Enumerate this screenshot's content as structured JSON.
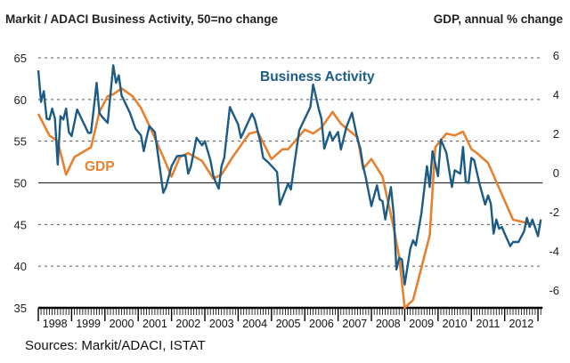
{
  "chart_data": {
    "type": "line",
    "title_left": "Markit / ADACI  Business Activity, 50=no change",
    "title_right": "GDP, annual % change",
    "source": "Sources: Markit/ADACI, ISTAT",
    "x_tick_labels": [
      "1998",
      "1999",
      "2000",
      "2001",
      "2002",
      "2003",
      "2004",
      "2005",
      "2006",
      "2007",
      "2008",
      "2009",
      "2010",
      "2011",
      "2012"
    ],
    "xlim": [
      "1998-01",
      "2013-02"
    ],
    "left_axis": {
      "ylim": [
        35,
        65
      ],
      "ticks": [
        "65",
        "60",
        "55",
        "50",
        "45",
        "40",
        "35"
      ]
    },
    "right_axis": {
      "ylim": [
        -6.9,
        6
      ],
      "ticks": [
        "6",
        "4",
        "2",
        "0",
        "-2",
        "-4",
        "-6"
      ]
    },
    "grid": "dashed horizontal",
    "reference_line": 50,
    "colors": {
      "business_activity": "#1b5b86",
      "gdp": "#e7812f"
    },
    "series": [
      {
        "name": "Business Activity",
        "axis": "left",
        "points": [
          [
            "1998-01",
            63.5
          ],
          [
            "1998-02",
            59.7
          ],
          [
            "1998-03",
            61
          ],
          [
            "1998-04",
            57.7
          ],
          [
            "1998-05",
            57.6
          ],
          [
            "1998-06",
            58.9
          ],
          [
            "1998-07",
            57.7
          ],
          [
            "1998-08",
            52.2
          ],
          [
            "1998-09",
            58
          ],
          [
            "1998-10",
            57.6
          ],
          [
            "1998-11",
            58.9
          ],
          [
            "1998-12",
            56.1
          ],
          [
            "1999-01",
            55.6
          ],
          [
            "1999-03",
            58.8
          ],
          [
            "1999-07",
            56
          ],
          [
            "1999-08",
            56
          ],
          [
            "1999-10",
            62
          ],
          [
            "1999-11",
            58.4
          ],
          [
            "1999-12",
            57.9
          ],
          [
            "2000-02",
            57.2
          ],
          [
            "2000-04",
            64.1
          ],
          [
            "2000-05",
            62
          ],
          [
            "2000-06",
            62.9
          ],
          [
            "2000-07",
            60.5
          ],
          [
            "2000-10",
            58.4
          ],
          [
            "2000-12",
            56.5
          ],
          [
            "2001-02",
            55.7
          ],
          [
            "2001-03",
            53.8
          ],
          [
            "2001-04",
            55.4
          ],
          [
            "2001-05",
            56.8
          ],
          [
            "2001-07",
            56.1
          ],
          [
            "2001-10",
            48.8
          ],
          [
            "2001-11",
            49.5
          ],
          [
            "2002-01",
            52
          ],
          [
            "2002-03",
            53.2
          ],
          [
            "2002-06",
            53.3
          ],
          [
            "2002-07",
            51.1
          ],
          [
            "2002-08",
            52
          ],
          [
            "2002-10",
            55.4
          ],
          [
            "2002-12",
            54.5
          ],
          [
            "2003-01",
            55
          ],
          [
            "2003-03",
            52.7
          ],
          [
            "2003-04",
            50.9
          ],
          [
            "2003-05",
            50
          ],
          [
            "2003-06",
            49.3
          ],
          [
            "2003-07",
            52
          ],
          [
            "2003-08",
            53
          ],
          [
            "2003-10",
            59.1
          ],
          [
            "2004-01",
            57
          ],
          [
            "2004-02",
            55.4
          ],
          [
            "2004-06",
            58.3
          ],
          [
            "2004-07",
            57.6
          ],
          [
            "2004-09",
            54.9
          ],
          [
            "2004-10",
            53
          ],
          [
            "2004-12",
            52.4
          ],
          [
            "2005-03",
            51.3
          ],
          [
            "2005-04",
            47.4
          ],
          [
            "2005-07",
            49.9
          ],
          [
            "2005-08",
            49.2
          ],
          [
            "2005-09",
            51.7
          ],
          [
            "2005-11",
            56.3
          ],
          [
            "2006-03",
            59.1
          ],
          [
            "2006-04",
            61.8
          ],
          [
            "2006-06",
            58.9
          ],
          [
            "2006-07",
            57.7
          ],
          [
            "2006-08",
            54.1
          ],
          [
            "2006-10",
            56.1
          ],
          [
            "2006-11",
            55.1
          ],
          [
            "2007-01",
            56.1
          ],
          [
            "2007-02",
            54
          ],
          [
            "2007-04",
            56.7
          ],
          [
            "2007-06",
            58.4
          ],
          [
            "2007-08",
            55.2
          ],
          [
            "2007-09",
            54.1
          ],
          [
            "2007-10",
            52
          ],
          [
            "2007-11",
            50.6
          ],
          [
            "2008-01",
            47.2
          ],
          [
            "2008-02",
            48.5
          ],
          [
            "2008-03",
            49.7
          ],
          [
            "2008-04",
            48
          ],
          [
            "2008-05",
            47.8
          ],
          [
            "2008-06",
            45.6
          ],
          [
            "2008-08",
            49.5
          ],
          [
            "2008-09",
            46.3
          ],
          [
            "2008-10",
            39.6
          ],
          [
            "2008-11",
            41
          ],
          [
            "2008-12",
            40.8
          ],
          [
            "2009-01",
            37.8
          ],
          [
            "2009-03",
            42.1
          ],
          [
            "2009-04",
            43.1
          ],
          [
            "2009-05",
            42.5
          ],
          [
            "2009-07",
            46.3
          ],
          [
            "2009-09",
            52
          ],
          [
            "2009-10",
            49.5
          ],
          [
            "2009-11",
            53.8
          ],
          [
            "2010-01",
            50.8
          ],
          [
            "2010-02",
            55.2
          ],
          [
            "2010-04",
            53.6
          ],
          [
            "2010-06",
            49.5
          ],
          [
            "2010-07",
            51.5
          ],
          [
            "2010-09",
            51.1
          ],
          [
            "2010-10",
            54.3
          ],
          [
            "2010-11",
            50.1
          ],
          [
            "2010-12",
            50
          ],
          [
            "2011-01",
            53
          ],
          [
            "2011-02",
            52.7
          ],
          [
            "2011-04",
            49.8
          ],
          [
            "2011-06",
            47.4
          ],
          [
            "2011-07",
            48.5
          ],
          [
            "2011-08",
            47.5
          ],
          [
            "2011-09",
            43.9
          ],
          [
            "2011-10",
            45.6
          ],
          [
            "2011-11",
            44.5
          ],
          [
            "2011-12",
            44.7
          ],
          [
            "2012-01",
            43.9
          ],
          [
            "2012-03",
            42.4
          ],
          [
            "2012-04",
            42.9
          ],
          [
            "2012-06",
            42.9
          ],
          [
            "2012-08",
            44.2
          ],
          [
            "2012-09",
            45.8
          ],
          [
            "2012-10",
            44.7
          ],
          [
            "2012-11",
            45.6
          ],
          [
            "2013-01",
            43.6
          ],
          [
            "2013-02",
            45.6
          ]
        ]
      },
      {
        "name": "GDP",
        "axis": "right",
        "points": [
          [
            "1998-01",
            3.0
          ],
          [
            "1998-05",
            1.9
          ],
          [
            "1998-08",
            1.6
          ],
          [
            "1998-11",
            -0.1
          ],
          [
            "1999-02",
            0.8
          ],
          [
            "1999-08",
            1.3
          ],
          [
            "1999-11",
            3.1
          ],
          [
            "2000-02",
            3.9
          ],
          [
            "2000-04",
            4.0
          ],
          [
            "2000-07",
            4.3
          ],
          [
            "2000-11",
            3.9
          ],
          [
            "2001-02",
            3.3
          ],
          [
            "2001-05",
            2.4
          ],
          [
            "2001-10",
            0.8
          ],
          [
            "2002-01",
            -0.2
          ],
          [
            "2002-04",
            0.8
          ],
          [
            "2002-07",
            1.0
          ],
          [
            "2002-12",
            0.6
          ],
          [
            "2003-04",
            -0.3
          ],
          [
            "2003-07",
            -0.1
          ],
          [
            "2003-11",
            0.8
          ],
          [
            "2004-05",
            2.0
          ],
          [
            "2004-08",
            2.1
          ],
          [
            "2005-01",
            0.7
          ],
          [
            "2005-05",
            1.2
          ],
          [
            "2005-07",
            1.2
          ],
          [
            "2006-01",
            2.2
          ],
          [
            "2006-04",
            2.0
          ],
          [
            "2006-07",
            2.3
          ],
          [
            "2006-11",
            3.1
          ],
          [
            "2007-02",
            2.5
          ],
          [
            "2007-08",
            1.8
          ],
          [
            "2007-10",
            0.2
          ],
          [
            "2008-01",
            0.7
          ],
          [
            "2008-05",
            -0.2
          ],
          [
            "2008-09",
            -2.8
          ],
          [
            "2008-11",
            -4.3
          ],
          [
            "2009-01",
            -6.9
          ],
          [
            "2009-04",
            -6.5
          ],
          [
            "2009-10",
            -3.2
          ],
          [
            "2009-12",
            1.3
          ],
          [
            "2010-04",
            2.0
          ],
          [
            "2010-07",
            1.9
          ],
          [
            "2010-10",
            2.1
          ],
          [
            "2011-01",
            1.2
          ],
          [
            "2011-03",
            1.0
          ],
          [
            "2011-07",
            0.5
          ],
          [
            "2012-04",
            -2.4
          ],
          [
            "2012-10",
            -2.6
          ]
        ]
      }
    ]
  }
}
